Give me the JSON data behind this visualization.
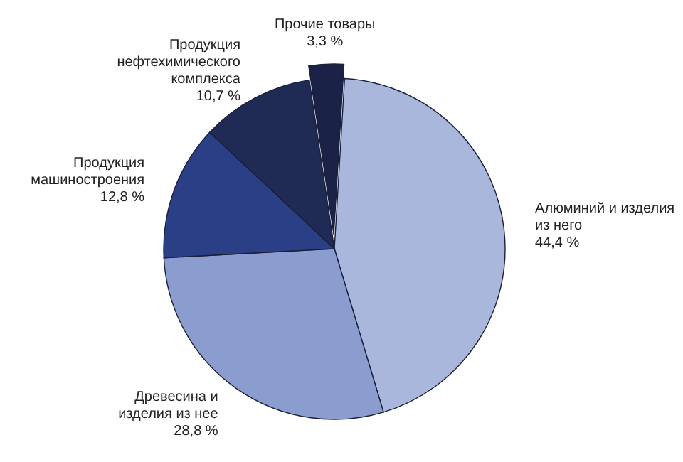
{
  "chart_data": {
    "type": "pie",
    "categories": [
      "Алюминий и изделия из него",
      "Древесина и изделия из нее",
      "Продукция машиностроения",
      "Продукция нефтехимического комплекса",
      "Прочие товары"
    ],
    "values": [
      44.4,
      28.8,
      12.8,
      10.7,
      3.3
    ],
    "value_labels": [
      "44,4 %",
      "28,8 %",
      "12,8 %",
      "10,7 %",
      "3,3 %"
    ],
    "colors": [
      "#a9b7dd",
      "#8b9dcf",
      "#2b3f86",
      "#1f2a55",
      "#1b2247"
    ]
  }
}
